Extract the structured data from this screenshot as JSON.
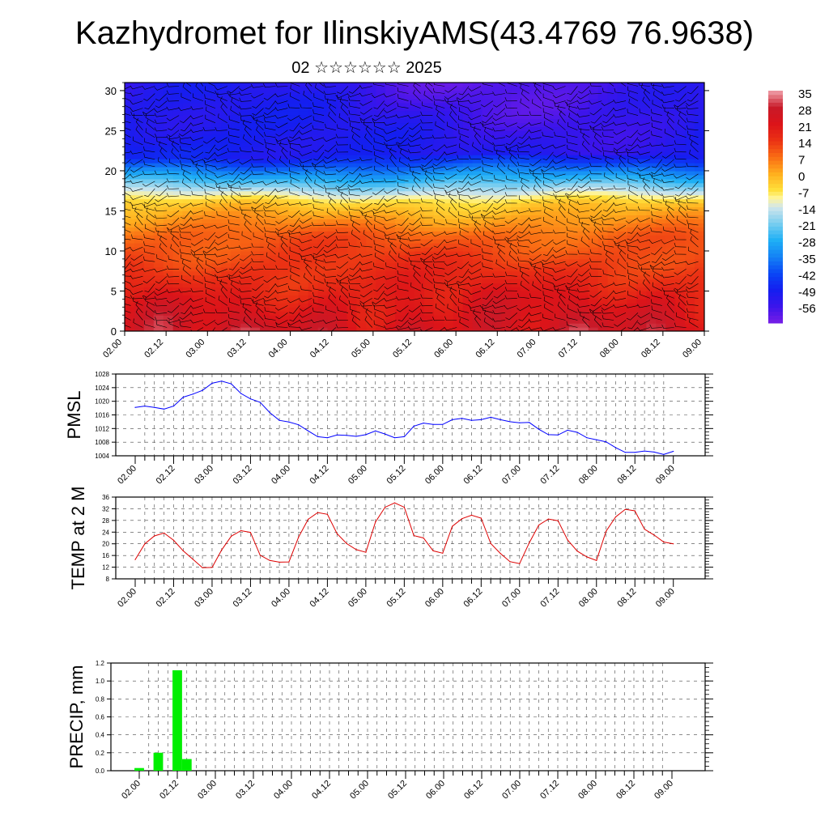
{
  "header": {
    "title": "Kazhydromet for IlinskiyAMS(43.4769 76.9638)",
    "subtitle": "02 ☆☆☆☆☆☆ 2025"
  },
  "colors": {
    "pmsl_line": "#0000ff",
    "temp_line": "#dd0000",
    "precip_bar": "#00ee00",
    "frame": "#000000"
  },
  "chart_data": [
    {
      "type": "heatmap",
      "id": "upper-air-section",
      "x_tick_labels": [
        "02.00",
        "02.12",
        "03.00",
        "03.12",
        "04.00",
        "04.12",
        "05.00",
        "05.12",
        "06.00",
        "06.12",
        "07.00",
        "07.12",
        "08.00",
        "08.12",
        "09.00"
      ],
      "y_tick_labels": [
        "0",
        "5",
        "10",
        "15",
        "20",
        "25",
        "30"
      ],
      "ylim": [
        0,
        31
      ],
      "colorbar_labels": [
        "35",
        "28",
        "21",
        "14",
        "7",
        "0",
        "-7",
        "-14",
        "-21",
        "-28",
        "-35",
        "-42",
        "-49",
        "-56"
      ],
      "colorbar_range": [
        -63,
        35
      ],
      "overlay": "wind barbs"
    },
    {
      "type": "line",
      "id": "pmsl",
      "ylabel": "PMSL",
      "ylim": [
        1004,
        1028
      ],
      "y_tick_labels": [
        "1004",
        "1008",
        "1012",
        "1016",
        "1020",
        "1024",
        "1028"
      ],
      "x_tick_labels": [
        "02.00",
        "02.12",
        "03.00",
        "03.12",
        "04.00",
        "04.12",
        "05.00",
        "05.12",
        "06.00",
        "06.12",
        "07.00",
        "07.12",
        "08.00",
        "08.12",
        "09.00"
      ],
      "values": [
        1018.2,
        1018.6,
        1018.2,
        1017.7,
        1018.6,
        1021.2,
        1022.1,
        1023.2,
        1025.3,
        1025.9,
        1025.1,
        1022.3,
        1020.7,
        1019.7,
        1016.7,
        1014.4,
        1013.9,
        1013.1,
        1011.3,
        1009.6,
        1009.3,
        1010.1,
        1010.0,
        1009.7,
        1010.2,
        1011.3,
        1010.4,
        1009.3,
        1009.6,
        1012.7,
        1013.6,
        1013.2,
        1013.2,
        1014.6,
        1015.0,
        1014.4,
        1014.6,
        1015.3,
        1014.6,
        1014.0,
        1013.7,
        1013.8,
        1011.8,
        1010.2,
        1010.1,
        1011.5,
        1010.9,
        1009.3,
        1008.7,
        1008.1,
        1006.4,
        1005.0,
        1005.0,
        1005.4,
        1005.1,
        1004.4,
        1005.3
      ]
    },
    {
      "type": "line",
      "id": "temp2m",
      "ylabel": "TEMP at 2 M",
      "ylim": [
        8,
        36
      ],
      "y_tick_labels": [
        "8",
        "12",
        "16",
        "20",
        "24",
        "28",
        "32",
        "36"
      ],
      "x_tick_labels": [
        "02.00",
        "02.12",
        "03.00",
        "03.12",
        "04.00",
        "04.12",
        "05.00",
        "05.12",
        "06.00",
        "06.12",
        "07.00",
        "07.12",
        "08.00",
        "08.12",
        "09.00"
      ],
      "values": [
        14.6,
        20.0,
        22.7,
        23.7,
        21.2,
        17.6,
        14.7,
        11.8,
        11.9,
        17.9,
        22.6,
        24.5,
        23.9,
        16.1,
        14.3,
        13.7,
        13.8,
        22.3,
        28.4,
        30.7,
        30.1,
        23.5,
        20.1,
        18.0,
        17.1,
        27.5,
        32.5,
        34.0,
        32.5,
        22.8,
        22.0,
        17.6,
        16.8,
        26.0,
        28.6,
        29.8,
        28.8,
        20.1,
        16.7,
        13.9,
        13.2,
        20.3,
        26.4,
        28.5,
        27.9,
        21.3,
        17.5,
        15.5,
        14.3,
        24.3,
        29.2,
        31.8,
        31.3,
        25.0,
        23.0,
        20.6,
        20.0
      ]
    },
    {
      "type": "bar",
      "id": "precip",
      "ylabel": "PRECIP, mm",
      "ylim": [
        0,
        1.2
      ],
      "y_tick_labels": [
        "0.0",
        "0.2",
        "0.4",
        "0.6",
        "0.8",
        "1.0",
        "1.2"
      ],
      "x_tick_labels": [
        "02.00",
        "02.12",
        "03.00",
        "03.12",
        "04.00",
        "04.12",
        "05.00",
        "05.12",
        "06.00",
        "06.12",
        "07.00",
        "07.12",
        "08.00",
        "08.12",
        "09.00"
      ],
      "values": [
        0.03,
        0.0,
        0.2,
        0.0,
        1.12,
        0.13
      ]
    }
  ]
}
